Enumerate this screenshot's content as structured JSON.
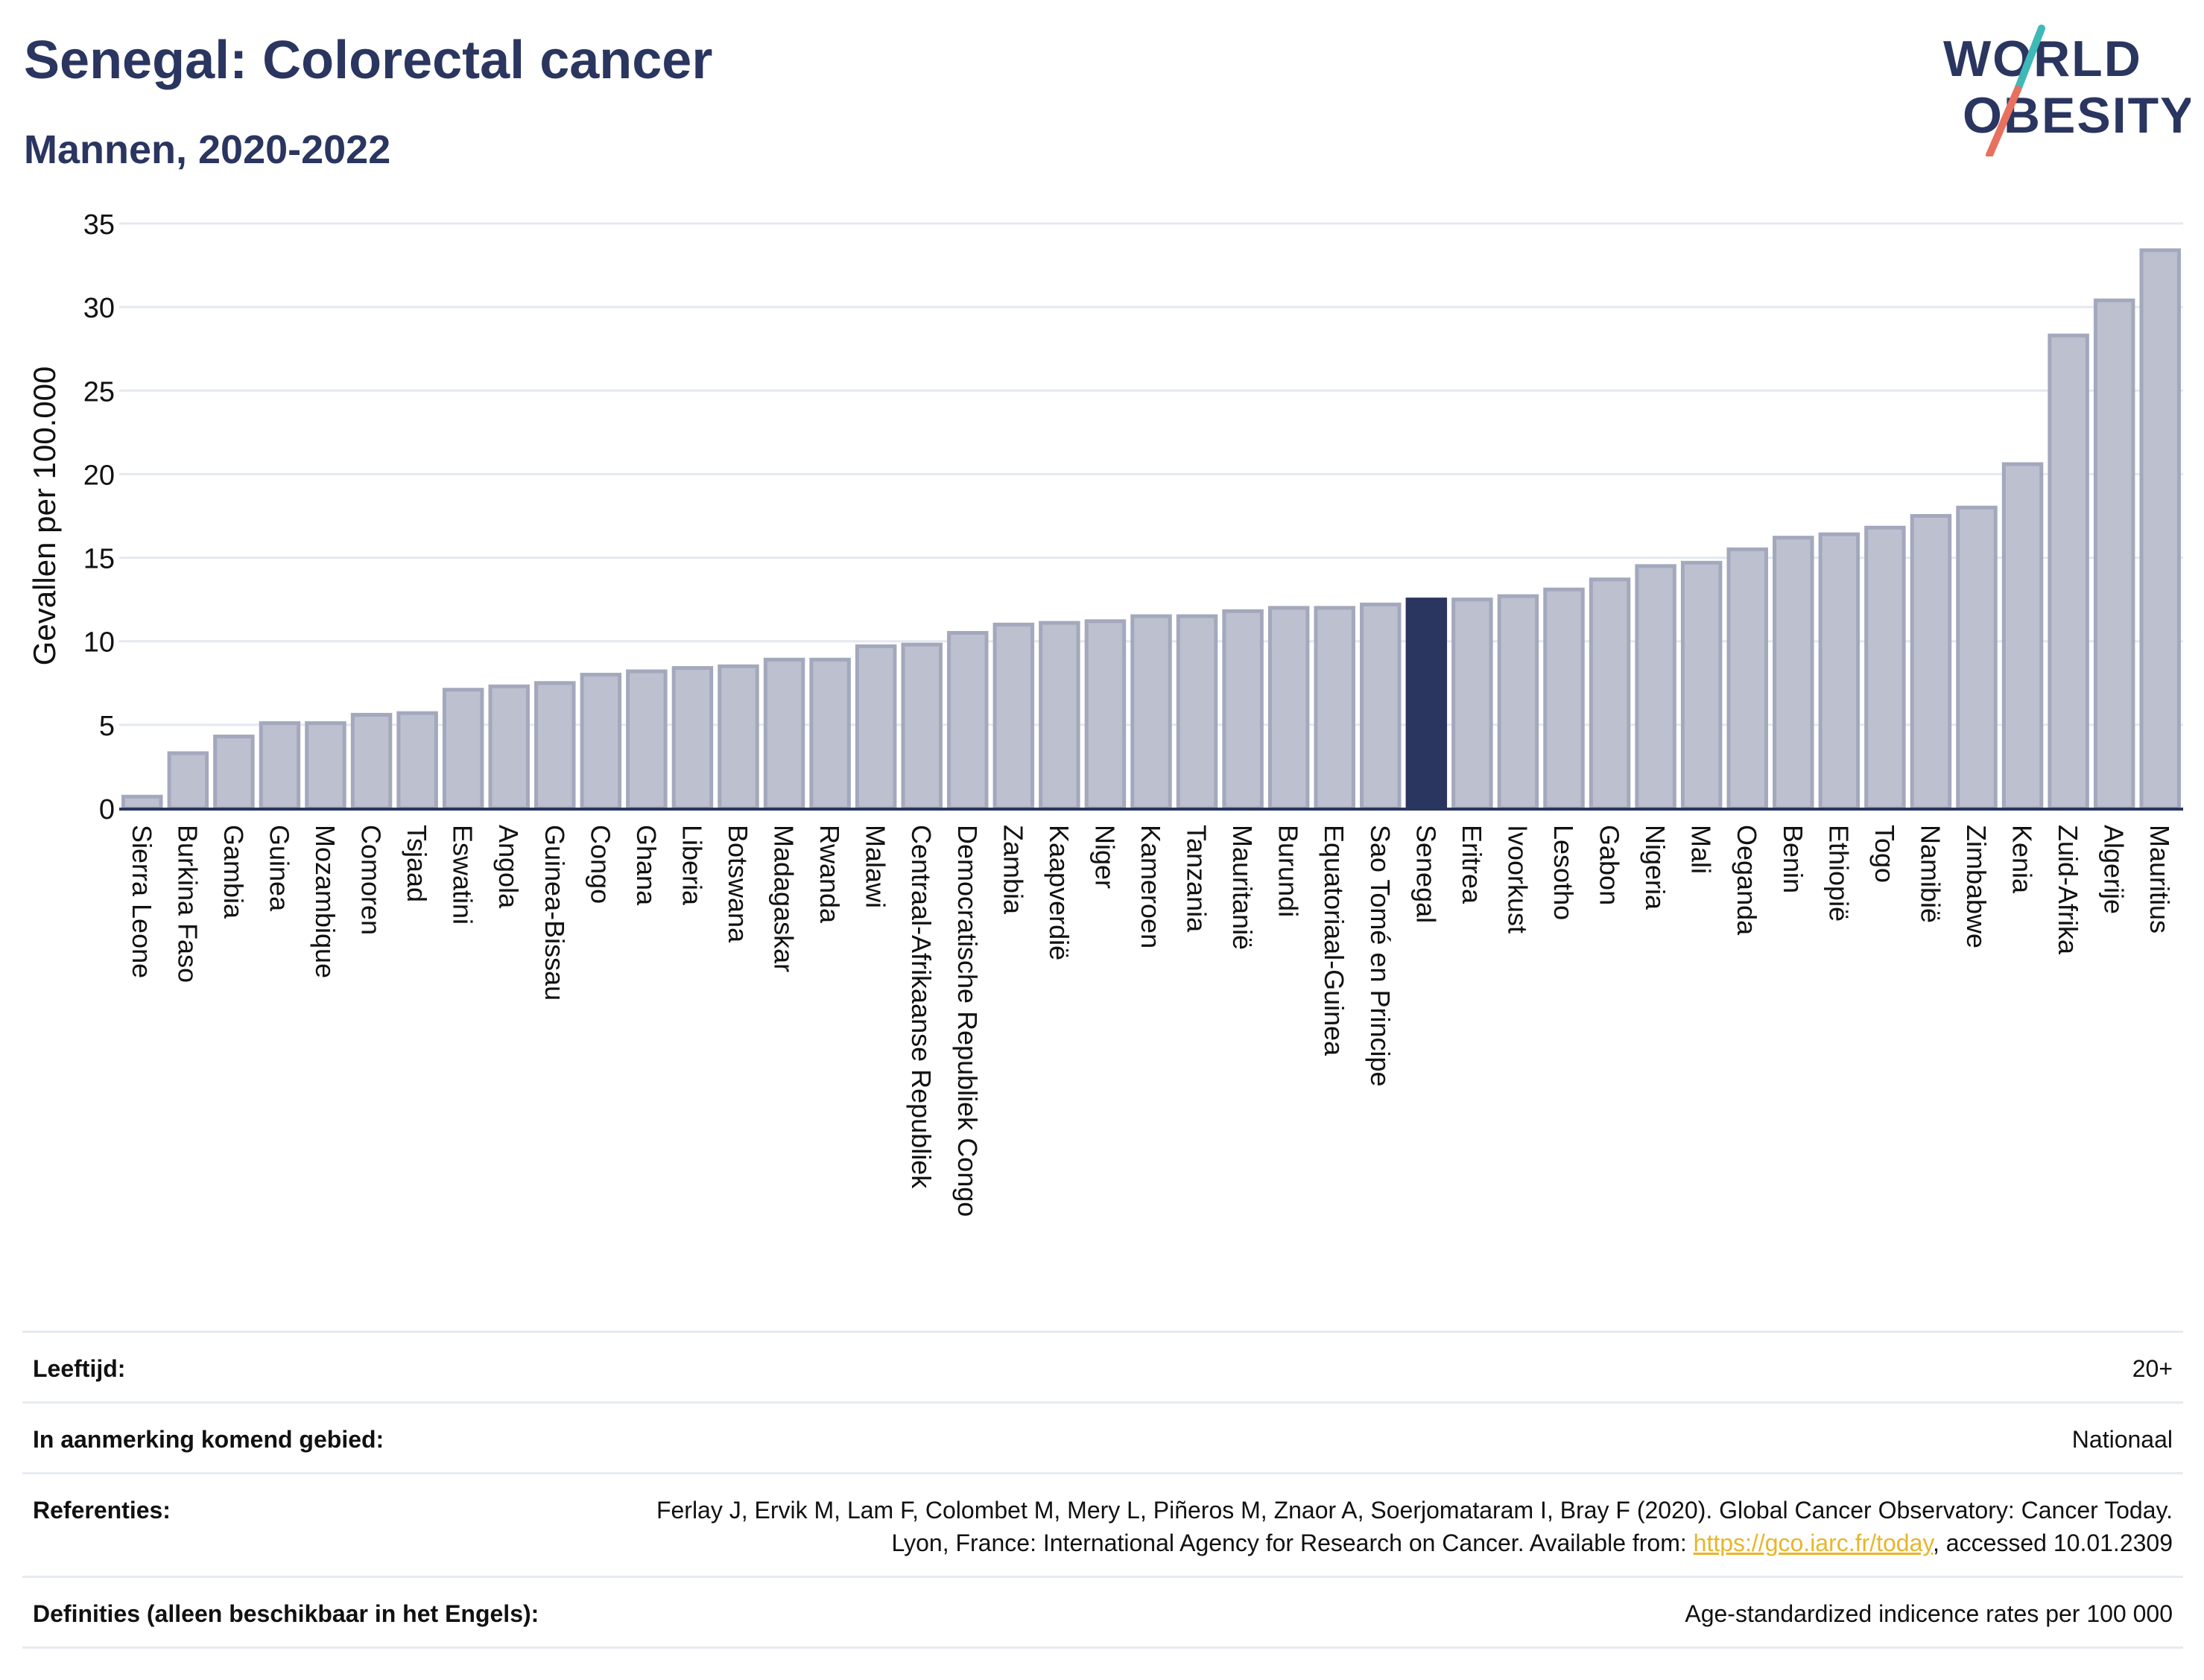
{
  "header": {
    "title": "Senegal: Colorectal cancer",
    "subtitle": "Mannen, 2020-2022"
  },
  "logo": {
    "line1": "WORLD",
    "line2": "OBESITY"
  },
  "colors": {
    "bar": "#bcc0cf",
    "bar_border": "#a3a8bd",
    "highlight": "#2a3560",
    "axis": "#2a3560",
    "grid": "#e4e8f0",
    "text": "#111111"
  },
  "chart_data": {
    "type": "bar",
    "ylabel": "Gevallen per 100.000",
    "ylim": [
      0,
      35
    ],
    "yticks": [
      0,
      5,
      10,
      15,
      20,
      25,
      30,
      35
    ],
    "grid": true,
    "highlight": "Senegal",
    "categories": [
      "Sierra Leone",
      "Burkina Faso",
      "Gambia",
      "Guinea",
      "Mozambique",
      "Comoren",
      "Tsjaad",
      "Eswatini",
      "Angola",
      "Guinea-Bissau",
      "Congo",
      "Ghana",
      "Liberia",
      "Botswana",
      "Madagaskar",
      "Rwanda",
      "Malawi",
      "Centraal-Afrikaanse Republiek",
      "Democratische Republiek Congo",
      "Zambia",
      "Kaapverdië",
      "Niger",
      "Kameroen",
      "Tanzania",
      "Mauritanië",
      "Burundi",
      "Equatoriaal-Guinea",
      "Sao Tomé en Principe",
      "Senegal",
      "Eritrea",
      "Ivoorkust",
      "Lesotho",
      "Gabon",
      "Nigeria",
      "Mali",
      "Oeganda",
      "Benin",
      "Ethiopië",
      "Togo",
      "Namibië",
      "Zimbabwe",
      "Kenia",
      "Zuid-Afrika",
      "Algerije",
      "Mauritius"
    ],
    "values": [
      0.7,
      3.3,
      4.3,
      5.1,
      5.1,
      5.6,
      5.7,
      7.1,
      7.3,
      7.5,
      8.0,
      8.2,
      8.4,
      8.5,
      8.9,
      8.9,
      9.7,
      9.8,
      10.5,
      11.0,
      11.1,
      11.2,
      11.5,
      11.5,
      11.8,
      12.0,
      12.0,
      12.2,
      12.5,
      12.5,
      12.7,
      13.1,
      13.7,
      14.5,
      14.7,
      15.5,
      16.2,
      16.4,
      16.8,
      17.5,
      18.0,
      20.6,
      28.3,
      30.4,
      33.4
    ]
  },
  "info_table": [
    {
      "label": "Leeftijd:",
      "value": "20+"
    },
    {
      "label": "In aanmerking komend gebied:",
      "value": "Nationaal"
    },
    {
      "label": "Referenties:",
      "value_pre": "Ferlay J, Ervik M, Lam F, Colombet M, Mery L, Piñeros M, Znaor A, Soerjomataram I, Bray F (2020). Global Cancer Observatory: Cancer Today. Lyon, France: International Agency for Research on Cancer. Available from: ",
      "link": "https://gco.iarc.fr/today",
      "value_post": ", accessed 10.01.2309"
    },
    {
      "label": "Definities (alleen beschikbaar in het Engels):",
      "value": "Age-standardized indicence rates per 100 000"
    }
  ]
}
